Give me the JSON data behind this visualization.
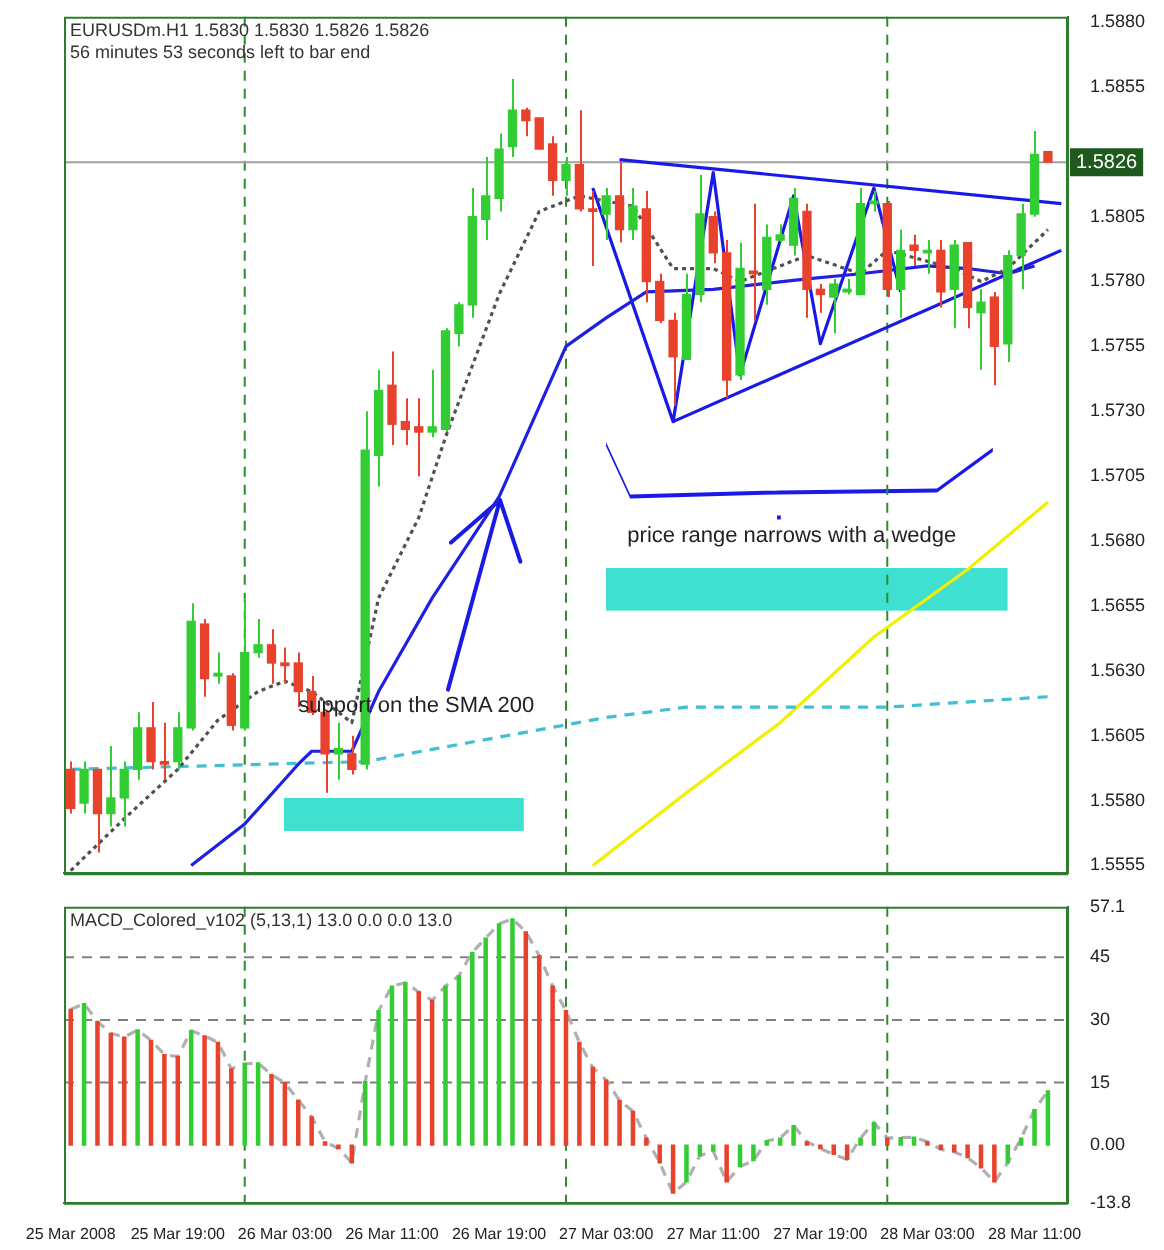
{
  "chart_data": [
    {
      "type": "candlestick",
      "title": "EURUSDm.H1 1.5830 1.5830 1.5826 1.5826",
      "subtitle": "56 minutes 53 seconds left to bar end",
      "x": [
        "2008-03-25T11:00",
        "2008-03-25T12:00",
        "2008-03-25T13:00",
        "2008-03-25T14:00",
        "2008-03-25T15:00",
        "2008-03-25T16:00",
        "2008-03-25T17:00",
        "2008-03-25T18:00",
        "2008-03-25T19:00",
        "2008-03-25T20:00",
        "2008-03-25T21:00",
        "2008-03-25T22:00",
        "2008-03-25T23:00",
        "2008-03-26T00:00",
        "2008-03-26T01:00",
        "2008-03-26T02:00",
        "2008-03-26T03:00",
        "2008-03-26T04:00",
        "2008-03-26T05:00",
        "2008-03-26T06:00",
        "2008-03-26T07:00",
        "2008-03-26T08:00",
        "2008-03-26T09:00",
        "2008-03-26T10:00",
        "2008-03-26T11:00",
        "2008-03-26T12:00",
        "2008-03-26T13:00",
        "2008-03-26T14:00",
        "2008-03-26T15:00",
        "2008-03-26T16:00",
        "2008-03-26T17:00",
        "2008-03-26T18:00",
        "2008-03-26T19:00",
        "2008-03-26T20:00",
        "2008-03-26T21:00",
        "2008-03-26T22:00",
        "2008-03-26T23:00",
        "2008-03-27T00:00",
        "2008-03-27T01:00",
        "2008-03-27T02:00",
        "2008-03-27T03:00",
        "2008-03-27T04:00",
        "2008-03-27T05:00",
        "2008-03-27T06:00",
        "2008-03-27T07:00",
        "2008-03-27T08:00",
        "2008-03-27T09:00",
        "2008-03-27T10:00",
        "2008-03-27T11:00",
        "2008-03-27T12:00",
        "2008-03-27T13:00",
        "2008-03-27T14:00",
        "2008-03-27T15:00",
        "2008-03-27T16:00",
        "2008-03-27T17:00",
        "2008-03-27T18:00",
        "2008-03-27T19:00",
        "2008-03-27T20:00",
        "2008-03-27T21:00",
        "2008-03-27T22:00",
        "2008-03-27T23:00",
        "2008-03-28T00:00",
        "2008-03-28T01:00",
        "2008-03-28T02:00",
        "2008-03-28T03:00",
        "2008-03-28T04:00",
        "2008-03-28T05:00",
        "2008-03-28T06:00",
        "2008-03-28T07:00",
        "2008-03-28T08:00",
        "2008-03-28T09:00",
        "2008-03-28T10:00",
        "2008-03-28T11:00",
        "2008-03-28T12:00"
      ],
      "ohlc": [
        [
          1.5592,
          1.5595,
          1.5575,
          1.5577
        ],
        [
          1.5579,
          1.5595,
          1.5575,
          1.5592
        ],
        [
          1.5592,
          1.5592,
          1.556,
          1.5575
        ],
        [
          1.5575,
          1.5601,
          1.557,
          1.5581
        ],
        [
          1.5581,
          1.5595,
          1.557,
          1.5592
        ],
        [
          1.5592,
          1.5614,
          1.5588,
          1.5608
        ],
        [
          1.5608,
          1.5618,
          1.5592,
          1.5595
        ],
        [
          1.5595,
          1.561,
          1.5588,
          1.5594
        ],
        [
          1.5595,
          1.5614,
          1.5592,
          1.5608
        ],
        [
          1.5608,
          1.5656,
          1.5607,
          1.5649
        ],
        [
          1.5648,
          1.565,
          1.562,
          1.5627
        ],
        [
          1.5628,
          1.5637,
          1.5625,
          1.5629
        ],
        [
          1.5628,
          1.5629,
          1.5607,
          1.5609
        ],
        [
          1.5608,
          1.5658,
          1.5607,
          1.5637
        ],
        [
          1.5637,
          1.565,
          1.5635,
          1.564
        ],
        [
          1.564,
          1.5646,
          1.5625,
          1.5633
        ],
        [
          1.5633,
          1.5639,
          1.5625,
          1.5632
        ],
        [
          1.5633,
          1.5637,
          1.5616,
          1.5622
        ],
        [
          1.5622,
          1.5628,
          1.5613,
          1.5614
        ],
        [
          1.5614,
          1.5615,
          1.5583,
          1.5598
        ],
        [
          1.5598,
          1.561,
          1.5588,
          1.56
        ],
        [
          1.5598,
          1.5605,
          1.559,
          1.5592
        ],
        [
          1.5594,
          1.573,
          1.5592,
          1.5715
        ],
        [
          1.5713,
          1.5746,
          1.5701,
          1.5738
        ],
        [
          1.574,
          1.5753,
          1.5717,
          1.5725
        ],
        [
          1.5726,
          1.5735,
          1.5717,
          1.5723
        ],
        [
          1.5724,
          1.5735,
          1.5705,
          1.5722
        ],
        [
          1.5722,
          1.5746,
          1.572,
          1.5724
        ],
        [
          1.5723,
          1.5762,
          1.5722,
          1.5761
        ],
        [
          1.576,
          1.5772,
          1.5755,
          1.5771
        ],
        [
          1.5771,
          1.5816,
          1.5766,
          1.5805
        ],
        [
          1.5804,
          1.5828,
          1.5796,
          1.5813
        ],
        [
          1.5812,
          1.5837,
          1.5807,
          1.5831
        ],
        [
          1.5832,
          1.5858,
          1.5828,
          1.5846
        ],
        [
          1.5846,
          1.5847,
          1.5836,
          1.5842
        ],
        [
          1.5843,
          1.5843,
          1.5831,
          1.5831
        ],
        [
          1.5833,
          1.5836,
          1.5813,
          1.5819
        ],
        [
          1.5819,
          1.5828,
          1.5813,
          1.5825
        ],
        [
          1.5825,
          1.5846,
          1.5807,
          1.5808
        ],
        [
          1.5808,
          1.5815,
          1.5786,
          1.5807
        ],
        [
          1.5806,
          1.5816,
          1.5796,
          1.5813
        ],
        [
          1.5813,
          1.5826,
          1.5795,
          1.58
        ],
        [
          1.58,
          1.5816,
          1.5796,
          1.5809
        ],
        [
          1.5808,
          1.5815,
          1.5772,
          1.578
        ],
        [
          1.578,
          1.5783,
          1.5764,
          1.5765
        ],
        [
          1.5765,
          1.5768,
          1.5732,
          1.5751
        ],
        [
          1.575,
          1.5783,
          1.575,
          1.5775
        ],
        [
          1.5775,
          1.5821,
          1.5772,
          1.5806
        ],
        [
          1.5805,
          1.5807,
          1.5787,
          1.5791
        ],
        [
          1.5791,
          1.5796,
          1.5735,
          1.5742
        ],
        [
          1.5744,
          1.5795,
          1.5742,
          1.5785
        ],
        [
          1.5784,
          1.581,
          1.5765,
          1.5783
        ],
        [
          1.5777,
          1.5802,
          1.5771,
          1.5797
        ],
        [
          1.5796,
          1.5802,
          1.5795,
          1.5798
        ],
        [
          1.5794,
          1.5816,
          1.579,
          1.5812
        ],
        [
          1.5807,
          1.581,
          1.5766,
          1.5777
        ],
        [
          1.5777,
          1.5779,
          1.5768,
          1.5775
        ],
        [
          1.5774,
          1.5781,
          1.576,
          1.5779
        ],
        [
          1.5776,
          1.5781,
          1.5775,
          1.5777
        ],
        [
          1.5775,
          1.5816,
          1.5775,
          1.581
        ],
        [
          1.581,
          1.5815,
          1.5807,
          1.5811
        ],
        [
          1.581,
          1.5811,
          1.5774,
          1.5777
        ],
        [
          1.5777,
          1.58,
          1.5766,
          1.5792
        ],
        [
          1.5794,
          1.5798,
          1.5786,
          1.5792
        ],
        [
          1.5791,
          1.5796,
          1.5783,
          1.5792
        ],
        [
          1.5792,
          1.5796,
          1.577,
          1.5776
        ],
        [
          1.5777,
          1.5796,
          1.5762,
          1.5794
        ],
        [
          1.5795,
          1.5795,
          1.5762,
          1.577
        ],
        [
          1.5768,
          1.5777,
          1.5746,
          1.5772
        ],
        [
          1.5774,
          1.5776,
          1.574,
          1.5755
        ],
        [
          1.5756,
          1.5792,
          1.5749,
          1.579
        ],
        [
          1.579,
          1.581,
          1.5777,
          1.5806
        ],
        [
          1.5806,
          1.5838,
          1.5805,
          1.5829
        ],
        [
          1.583,
          1.583,
          1.5826,
          1.5826
        ]
      ],
      "colors": [
        "#e8412c",
        "#32cd32",
        "#e8412c",
        "#32cd32",
        "#32cd32",
        "#32cd32",
        "#e8412c",
        "#e8412c",
        "#32cd32",
        "#32cd32",
        "#e8412c",
        "#32cd32",
        "#e8412c",
        "#32cd32",
        "#32cd32",
        "#e8412c",
        "#e8412c",
        "#e8412c",
        "#e8412c",
        "#e8412c",
        "#32cd32",
        "#e8412c",
        "#32cd32",
        "#32cd32",
        "#e8412c",
        "#e8412c",
        "#e8412c",
        "#32cd32",
        "#32cd32",
        "#32cd32",
        "#32cd32",
        "#32cd32",
        "#32cd32",
        "#32cd32",
        "#e8412c",
        "#e8412c",
        "#e8412c",
        "#32cd32",
        "#e8412c",
        "#e8412c",
        "#32cd32",
        "#e8412c",
        "#32cd32",
        "#e8412c",
        "#e8412c",
        "#e8412c",
        "#32cd32",
        "#32cd32",
        "#e8412c",
        "#e8412c",
        "#32cd32",
        "#e8412c",
        "#32cd32",
        "#32cd32",
        "#32cd32",
        "#e8412c",
        "#e8412c",
        "#32cd32",
        "#32cd32",
        "#32cd32",
        "#32cd32",
        "#e8412c",
        "#32cd32",
        "#e8412c",
        "#32cd32",
        "#e8412c",
        "#32cd32",
        "#e8412c",
        "#32cd32",
        "#e8412c",
        "#32cd32",
        "#32cd32",
        "#32cd32",
        "#e8412c"
      ],
      "series": [
        {
          "type": "line",
          "color": "#505050",
          "line_style": "dotted",
          "x": [
            "2008-03-25T11:00",
            "2008-03-25T15:00",
            "2008-03-25T19:00",
            "2008-03-25T22:00",
            "2008-03-26T01:00",
            "2008-03-26T03:00",
            "2008-03-26T05:00",
            "2008-03-26T08:00",
            "2008-03-26T10:00",
            "2008-03-26T13:00",
            "2008-03-26T15:00",
            "2008-03-26T19:00",
            "2008-03-26T22:00",
            "2008-03-27T01:00",
            "2008-03-27T05:00",
            "2008-03-27T08:00",
            "2008-03-27T11:00",
            "2008-03-27T13:00",
            "2008-03-27T18:00",
            "2008-03-27T22:00",
            "2008-03-28T00:00",
            "2008-03-28T05:00",
            "2008-03-28T07:00",
            "2008-03-28T09:00",
            "2008-03-28T12:00"
          ],
          "values": [
            1.5553,
            1.5573,
            1.5592,
            1.5611,
            1.5622,
            1.5626,
            1.5622,
            1.561,
            1.5658,
            1.5689,
            1.572,
            1.5775,
            1.5807,
            1.5813,
            1.5809,
            1.5785,
            1.5785,
            1.578,
            1.579,
            1.5783,
            1.5792,
            1.5785,
            1.578,
            1.5785,
            1.58
          ]
        },
        {
          "type": "line",
          "color": "#2020e0",
          "line_style": "solid",
          "x": [
            "2008-03-25T20:00",
            "2008-03-26T00:00",
            "2008-03-26T04:00",
            "2008-03-26T05:00",
            "2008-03-26T08:00",
            "2008-03-26T10:00",
            "2008-03-26T14:00",
            "2008-03-26T19:00",
            "2008-03-27T00:00",
            "2008-03-27T03:00",
            "2008-03-27T06:00",
            "2008-03-27T11:00",
            "2008-03-27T18:00",
            "2008-03-27T22:00",
            "2008-03-28T03:00",
            "2008-03-28T06:00",
            "2008-03-28T09:00",
            "2008-03-28T11:00"
          ],
          "values": [
            1.5555,
            1.5571,
            1.5594,
            1.5599,
            1.5599,
            1.5622,
            1.5658,
            1.5697,
            1.5755,
            1.5766,
            1.5776,
            1.5777,
            1.5781,
            1.5783,
            1.5786,
            1.5785,
            1.5783,
            1.5786
          ]
        },
        {
          "type": "line",
          "color": "#40c0d0",
          "line_style": "dashed",
          "x": [
            "2008-03-25T11:00",
            "2008-03-26T09:00",
            "2008-03-27T03:00",
            "2008-03-27T09:00",
            "2008-03-28T00:00",
            "2008-03-28T12:00"
          ],
          "values": [
            1.5592,
            1.5595,
            1.5612,
            1.5616,
            1.5616,
            1.562
          ]
        },
        {
          "type": "line",
          "color": "#f0f000",
          "line_style": "solid",
          "x": [
            "2008-03-27T02:00",
            "2008-03-27T09:00",
            "2008-03-27T16:00",
            "2008-03-27T23:00",
            "2008-03-28T06:00",
            "2008-03-28T12:00"
          ],
          "values": [
            1.5555,
            1.5583,
            1.561,
            1.5643,
            1.5669,
            1.5695
          ]
        },
        {
          "type": "line",
          "color": "#1a1ae6",
          "line_style": "solid",
          "x": [
            "2008-03-27T02:00",
            "2008-03-27T08:00",
            "2008-03-27T11:00",
            "2008-03-27T13:00",
            "2008-03-27T17:00",
            "2008-03-27T19:00",
            "2008-03-27T23:00",
            "2008-03-28T01:00"
          ],
          "values": [
            1.5816,
            1.5726,
            1.5822,
            1.5744,
            1.5813,
            1.5756,
            1.5816,
            1.5776
          ]
        },
        {
          "type": "line",
          "color": "#1a1ae6",
          "line_style": "solid",
          "x": [
            "2008-03-27T04:00",
            "2008-03-28T13:00"
          ],
          "values": [
            1.5827,
            1.581
          ]
        },
        {
          "type": "line",
          "color": "#1a1ae6",
          "line_style": "solid",
          "x": [
            "2008-03-27T08:00",
            "2008-03-28T13:00"
          ],
          "values": [
            1.5726,
            1.5792
          ]
        }
      ],
      "xlim": [
        "2008-03-25T10:30",
        "2008-03-28T13:30"
      ],
      "ylim": [
        1.5552,
        1.5882
      ],
      "yticks": [
        {
          "value": 1.588,
          "label": "1.5880"
        },
        1.5855,
        1.5805,
        {
          "value": 1.578,
          "label": "1.5780"
        },
        1.5755,
        {
          "value": 1.573,
          "label": "1.5730"
        },
        1.5705,
        {
          "value": 1.568,
          "label": "1.5680"
        },
        1.5655,
        {
          "value": 1.563,
          "label": "1.5630"
        },
        1.5605,
        {
          "value": 1.558,
          "label": "1.5580"
        },
        1.5555
      ],
      "ref_lines": [
        {
          "axis": "x",
          "value": "2008-03-26T00:00",
          "color": "#2e8b2e",
          "line_style": "dashed"
        },
        {
          "axis": "x",
          "value": "2008-03-27T00:00",
          "color": "#2e8b2e",
          "line_style": "dashed"
        },
        {
          "axis": "x",
          "value": "2008-03-28T00:00",
          "color": "#2e8b2e",
          "line_style": "dashed"
        },
        {
          "axis": "y",
          "value": 1.5826,
          "label": "1.5826",
          "color": "#a0a0a0",
          "line_style": "solid"
        }
      ],
      "annotations": [
        {
          "text": "support on the SMA 200",
          "x": "2008-03-26T19:00",
          "y": 1.5696
        },
        "price range narrows with a wedge"
      ],
      "tick_labels": "y"
    },
    {
      "type": "bar",
      "title": "MACD_Colored_v102 (5,13,1) 13.0 0.0 0.0 13.0",
      "x": [
        "2008-03-25T11:00",
        "2008-03-25T12:00",
        "2008-03-25T13:00",
        "2008-03-25T14:00",
        "2008-03-25T15:00",
        "2008-03-25T16:00",
        "2008-03-25T17:00",
        "2008-03-25T18:00",
        "2008-03-25T19:00",
        "2008-03-25T20:00",
        "2008-03-25T21:00",
        "2008-03-25T22:00",
        "2008-03-25T23:00",
        "2008-03-26T00:00",
        "2008-03-26T01:00",
        "2008-03-26T02:00",
        "2008-03-26T03:00",
        "2008-03-26T04:00",
        "2008-03-26T05:00",
        "2008-03-26T06:00",
        "2008-03-26T07:00",
        "2008-03-26T08:00",
        "2008-03-26T09:00",
        "2008-03-26T10:00",
        "2008-03-26T11:00",
        "2008-03-26T12:00",
        "2008-03-26T13:00",
        "2008-03-26T14:00",
        "2008-03-26T15:00",
        "2008-03-26T16:00",
        "2008-03-26T17:00",
        "2008-03-26T18:00",
        "2008-03-26T19:00",
        "2008-03-26T20:00",
        "2008-03-26T21:00",
        "2008-03-26T22:00",
        "2008-03-26T23:00",
        "2008-03-27T00:00",
        "2008-03-27T01:00",
        "2008-03-27T02:00",
        "2008-03-27T03:00",
        "2008-03-27T04:00",
        "2008-03-27T05:00",
        "2008-03-27T06:00",
        "2008-03-27T07:00",
        "2008-03-27T08:00",
        "2008-03-27T09:00",
        "2008-03-27T10:00",
        "2008-03-27T11:00",
        "2008-03-27T12:00",
        "2008-03-27T13:00",
        "2008-03-27T14:00",
        "2008-03-27T15:00",
        "2008-03-27T16:00",
        "2008-03-27T17:00",
        "2008-03-27T18:00",
        "2008-03-27T19:00",
        "2008-03-27T20:00",
        "2008-03-27T21:00",
        "2008-03-27T22:00",
        "2008-03-27T23:00",
        "2008-03-28T00:00",
        "2008-03-28T01:00",
        "2008-03-28T02:00",
        "2008-03-28T03:00",
        "2008-03-28T04:00",
        "2008-03-28T05:00",
        "2008-03-28T06:00",
        "2008-03-28T07:00",
        "2008-03-28T08:00",
        "2008-03-28T09:00",
        "2008-03-28T10:00",
        "2008-03-28T11:00",
        "2008-03-28T12:00"
      ],
      "series": [
        {
          "colors": [
            "#e8412c",
            "#32cd32",
            "#e8412c",
            "#e8412c",
            "#e8412c",
            "#32cd32",
            "#e8412c",
            "#e8412c",
            "#e8412c",
            "#32cd32",
            "#e8412c",
            "#e8412c",
            "#e8412c",
            "#32cd32",
            "#32cd32",
            "#e8412c",
            "#e8412c",
            "#e8412c",
            "#e8412c",
            "#e8412c",
            "#e8412c",
            "#e8412c",
            "#32cd32",
            "#32cd32",
            "#32cd32",
            "#32cd32",
            "#e8412c",
            "#e8412c",
            "#32cd32",
            "#32cd32",
            "#32cd32",
            "#32cd32",
            "#32cd32",
            "#32cd32",
            "#e8412c",
            "#e8412c",
            "#e8412c",
            "#e8412c",
            "#e8412c",
            "#e8412c",
            "#e8412c",
            "#e8412c",
            "#e8412c",
            "#e8412c",
            "#e8412c",
            "#e8412c",
            "#32cd32",
            "#32cd32",
            "#32cd32",
            "#e8412c",
            "#32cd32",
            "#32cd32",
            "#32cd32",
            "#32cd32",
            "#32cd32",
            "#e8412c",
            "#e8412c",
            "#e8412c",
            "#e8412c",
            "#32cd32",
            "#32cd32",
            "#e8412c",
            "#32cd32",
            "#32cd32",
            "#e8412c",
            "#e8412c",
            "#e8412c",
            "#e8412c",
            "#e8412c",
            "#e8412c",
            "#32cd32",
            "#32cd32",
            "#32cd32",
            "#32cd32"
          ],
          "values": [
            32.5,
            33.9,
            29.6,
            26.8,
            25.9,
            27.6,
            25.1,
            21.7,
            21.2,
            27.4,
            26.2,
            24.6,
            18.3,
            19.5,
            19.7,
            16.9,
            14.9,
            10.8,
            6.8,
            0.8,
            -0.8,
            -4.2,
            15.2,
            32.2,
            38.1,
            38.9,
            36.7,
            34.7,
            38.1,
            40.6,
            46.2,
            49.6,
            53.0,
            54.2,
            51.1,
            45.4,
            38.1,
            32.2,
            24.6,
            18.6,
            15.6,
            10.7,
            8.1,
            1.7,
            -4.2,
            -11.5,
            -8.8,
            -2.5,
            -1.4,
            -8.8,
            -5.1,
            -3.7,
            1.0,
            1.7,
            4.7,
            0.8,
            -0.8,
            -2.2,
            -3.4,
            1.7,
            5.4,
            1.7,
            1.8,
            1.9,
            0.8,
            -1.0,
            -1.6,
            -3.0,
            -5.4,
            -8.8,
            -4.2,
            1.7,
            8.5,
            13.0
          ]
        },
        {
          "type": "line",
          "color": "#b0b0b0",
          "line_style": "dashed",
          "values": [
            32.5,
            33.9,
            29.6,
            26.8,
            25.9,
            27.6,
            25.1,
            21.7,
            21.2,
            27.4,
            26.2,
            24.6,
            18.3,
            19.5,
            19.7,
            16.9,
            14.9,
            10.8,
            6.8,
            0.8,
            -0.8,
            -4.2,
            15.2,
            32.2,
            38.1,
            38.9,
            36.7,
            34.7,
            38.1,
            40.6,
            46.2,
            49.6,
            53.0,
            54.2,
            51.1,
            45.4,
            38.1,
            32.2,
            24.6,
            18.6,
            15.6,
            10.7,
            8.1,
            1.7,
            -4.2,
            -11.5,
            -8.8,
            -2.5,
            -1.4,
            -8.8,
            -5.1,
            -3.7,
            1.0,
            1.7,
            4.7,
            0.8,
            -0.8,
            -2.2,
            -3.4,
            1.7,
            5.4,
            1.7,
            1.8,
            1.9,
            0.8,
            -1.0,
            -1.6,
            -3.0,
            -5.4,
            -8.8,
            -4.2,
            1.7,
            8.5,
            13.0
          ]
        }
      ],
      "xlim": [
        "2008-03-25T10:30",
        "2008-03-28T13:30"
      ],
      "ylim": [
        -13.8,
        57.1
      ],
      "xticks": [
        {
          "value": "2008-03-25T11:00",
          "label": "25 Mar 2008"
        },
        {
          "value": "2008-03-25T19:00",
          "label": "25 Mar 19:00"
        },
        {
          "value": "2008-03-26T03:00",
          "label": "26 Mar 03:00"
        },
        {
          "value": "2008-03-26T11:00",
          "label": "26 Mar 11:00"
        },
        {
          "value": "2008-03-26T19:00",
          "label": "26 Mar 19:00"
        },
        {
          "value": "2008-03-27T03:00",
          "label": "27 Mar 03:00"
        },
        {
          "value": "2008-03-27T11:00",
          "label": "27 Mar 11:00"
        },
        {
          "value": "2008-03-27T19:00",
          "label": "27 Mar 19:00"
        },
        {
          "value": "2008-03-28T03:00",
          "label": "28 Mar 03:00"
        },
        {
          "value": "2008-03-28T11:00",
          "label": "28 Mar 11:00"
        }
      ],
      "yticks": [
        57.1,
        45,
        30,
        15,
        {
          "value": 0,
          "label": "0.00"
        },
        -13.8
      ],
      "ref_lines": [
        {
          "axis": "x",
          "value": "2008-03-26T00:00",
          "color": "#2e8b2e",
          "line_style": "dashed"
        },
        {
          "axis": "x",
          "value": "2008-03-27T00:00",
          "color": "#2e8b2e",
          "line_style": "dashed"
        },
        {
          "axis": "x",
          "value": "2008-03-28T00:00",
          "color": "#2e8b2e",
          "line_style": "dashed"
        },
        {
          "axis": "y",
          "value": 15,
          "color": "#808080",
          "line_style": "dashed"
        },
        {
          "axis": "y",
          "value": 30,
          "color": "#808080",
          "line_style": "dashed"
        },
        {
          "axis": "y",
          "value": 45,
          "color": "#808080",
          "line_style": "dashed"
        }
      ]
    }
  ]
}
